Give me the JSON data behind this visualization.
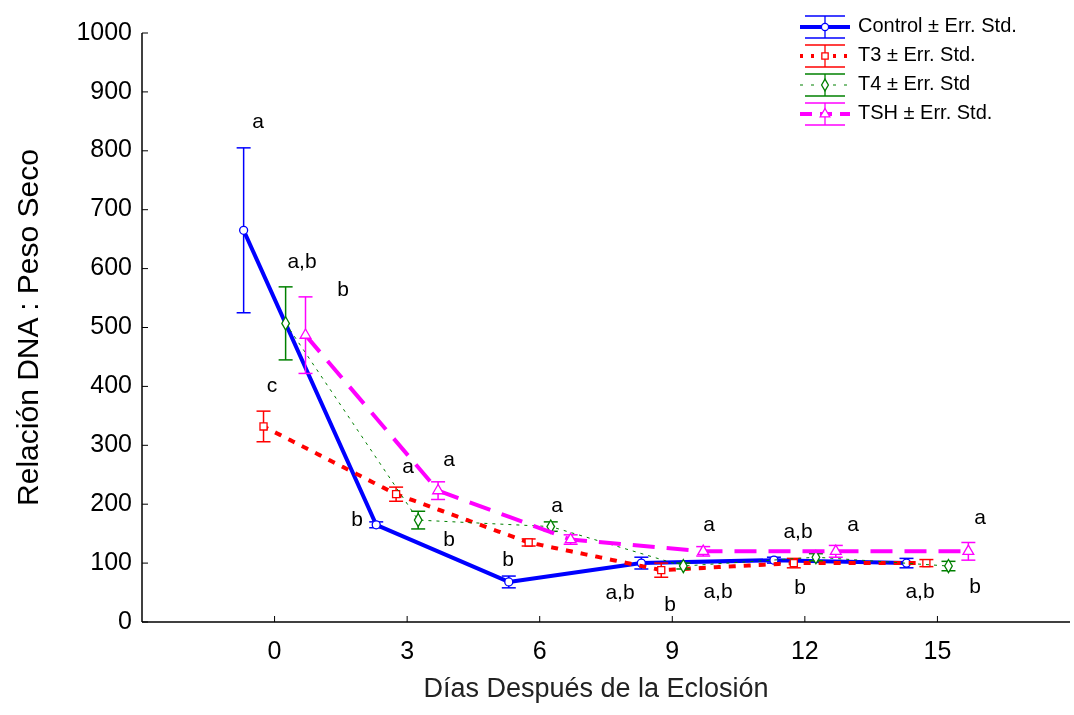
{
  "chart_data": {
    "type": "line",
    "xlabel": "Días Después de la Eclosión",
    "ylabel": "Relación DNA : Peso Seco",
    "xlim": [
      -3,
      18
    ],
    "xticks": [
      0,
      3,
      6,
      9,
      12,
      15
    ],
    "ylim": [
      0,
      1000
    ],
    "yticks": [
      0,
      100,
      200,
      300,
      400,
      500,
      600,
      700,
      800,
      900,
      1000
    ],
    "grid": false,
    "legend": "top right",
    "series": [
      {
        "name": "Control ± Err. Std.",
        "color": "#0000ff",
        "marker": "circle",
        "line_style": "solid",
        "x": [
          -0.7,
          2.3,
          5.3,
          8.3,
          11.3,
          14.3
        ],
        "values": [
          665,
          165,
          68,
          100,
          105,
          100
        ],
        "errors": [
          140,
          5,
          10,
          10,
          5,
          8
        ]
      },
      {
        "name": "T3 ± Err. Std.",
        "color": "#ff0000",
        "marker": "square",
        "line_style": "dotted",
        "x": [
          -0.25,
          2.75,
          5.75,
          8.75,
          11.75,
          14.75
        ],
        "values": [
          332,
          217,
          135,
          88,
          100,
          100
        ],
        "errors": [
          26,
          12,
          6,
          12,
          8,
          6
        ]
      },
      {
        "name": "T4 ± Err. Std",
        "color": "#008000",
        "marker": "diamond",
        "line_style": "dotted",
        "x": [
          0.25,
          3.25,
          6.25,
          9.25,
          12.25,
          15.25
        ],
        "values": [
          507,
          173,
          162,
          95,
          110,
          95
        ],
        "errors": [
          62,
          15,
          8,
          5,
          6,
          8
        ]
      },
      {
        "name": "TSH ± Err. Std.",
        "color": "#ff00ff",
        "marker": "triangle",
        "line_style": "dashed",
        "x": [
          0.7,
          3.7,
          6.7,
          9.7,
          12.7,
          15.7
        ],
        "values": [
          487,
          223,
          140,
          120,
          120,
          120
        ],
        "errors": [
          65,
          15,
          8,
          8,
          10,
          15
        ]
      }
    ],
    "annotations": [
      "a",
      "a,b",
      "b",
      "c",
      "b",
      "a",
      "a",
      "b",
      "b",
      "a",
      "a,b",
      "b",
      "a,b",
      "a",
      "a,b",
      "b",
      "a",
      "a,b",
      "b",
      "a"
    ]
  }
}
